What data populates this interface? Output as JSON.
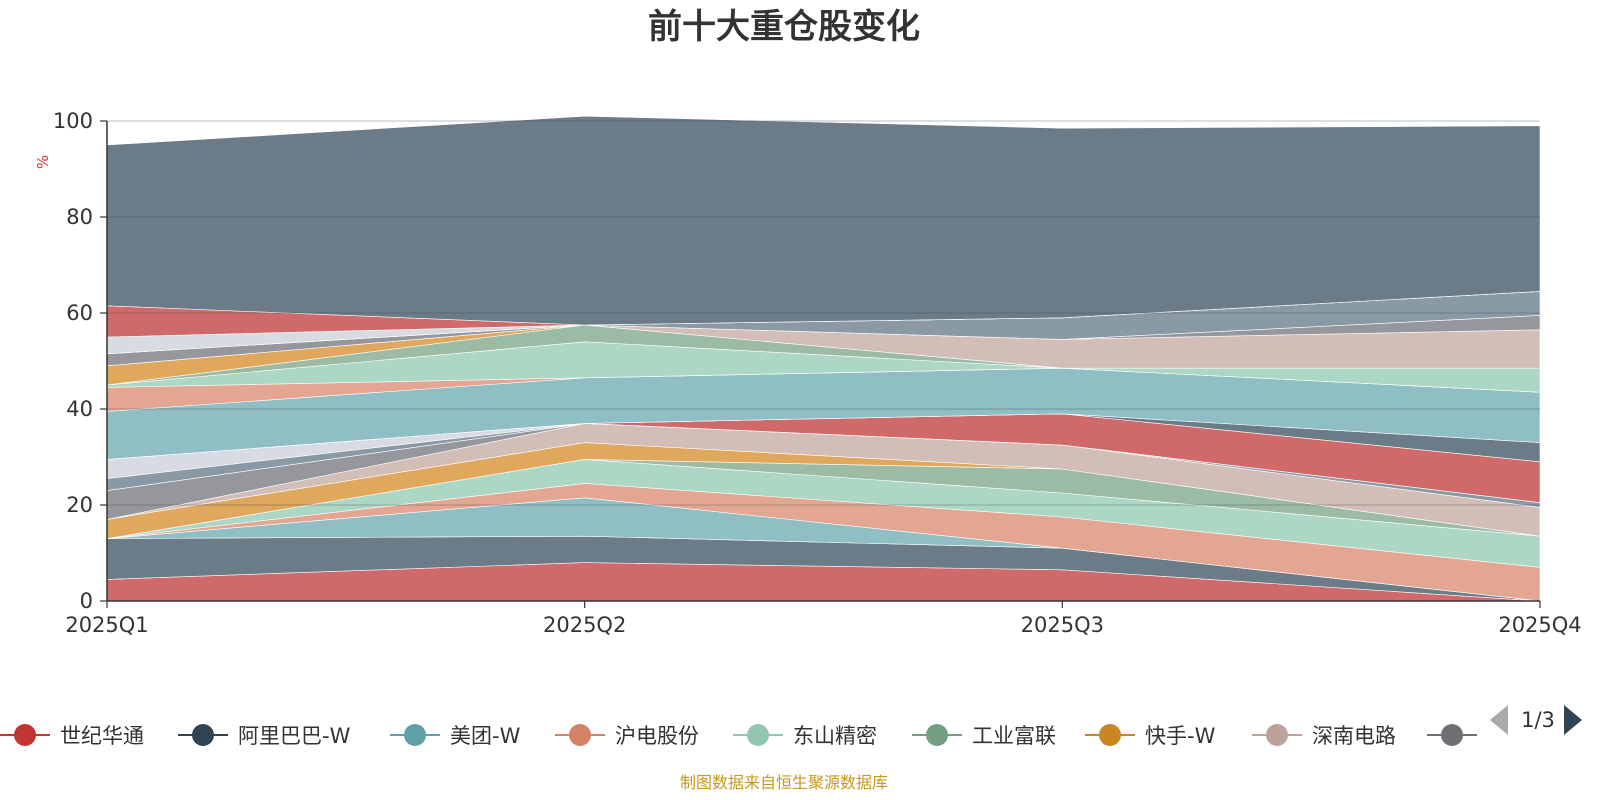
{
  "chart_data": {
    "type": "area",
    "title": "前十大重仓股变化",
    "ylabel": "%",
    "ylim": [
      0,
      100
    ],
    "yticks": [
      0,
      20,
      40,
      60,
      80,
      100
    ],
    "categories": [
      "2025Q1",
      "2025Q2",
      "2025Q3",
      "2025Q4"
    ],
    "grid": true,
    "legend_position": "bottom",
    "legend_page": "1/3",
    "source": "制图数据来自恒生聚源数据库",
    "series": [
      {
        "name": "世纪华通",
        "color": "#d06a6a",
        "values": [
          4.5,
          8.0,
          6.5,
          0.0
        ]
      },
      {
        "name": "阿里巴巴-W",
        "color": "#6b7b87",
        "values": [
          8.5,
          5.5,
          4.5,
          0.0
        ]
      },
      {
        "name": "美团-W",
        "color": "#8fbec4",
        "values": [
          0.0,
          8.0,
          0.0,
          0.0
        ]
      },
      {
        "name": "沪电股份",
        "color": "#e3a692",
        "values": [
          0.0,
          3.0,
          6.5,
          7.0
        ]
      },
      {
        "name": "东山精密",
        "color": "#add7c5",
        "values": [
          0.0,
          5.0,
          5.0,
          6.5
        ]
      },
      {
        "name": "工业富联",
        "color": "#9cbba5",
        "values": [
          0.0,
          0.0,
          5.0,
          0.0
        ]
      },
      {
        "name": "快手-W",
        "color": "#dfa85c",
        "values": [
          4.0,
          3.5,
          0.0,
          0.0
        ]
      },
      {
        "name": "深南电路",
        "color": "#d3bdb7",
        "values": [
          0.0,
          4.0,
          5.0,
          6.0
        ]
      },
      {
        "color": "#96979c",
        "values": [
          6.0,
          0.0,
          0.0,
          0.0
        ]
      },
      {
        "color": "#8a9aa5",
        "values": [
          2.5,
          0.0,
          0.0,
          1.0
        ]
      },
      {
        "color": "#d9dbe2",
        "values": [
          4.0,
          0.0,
          0.0,
          0.0
        ]
      },
      {
        "color": "#d06a6a",
        "values": [
          0.0,
          0.0,
          6.5,
          8.5
        ]
      },
      {
        "color": "#6b7b87",
        "values": [
          0.0,
          0.0,
          0.0,
          4.0
        ]
      },
      {
        "color": "#8fbec4",
        "values": [
          10.0,
          9.5,
          9.5,
          10.5
        ]
      },
      {
        "color": "#e3a692",
        "values": [
          5.0,
          0.0,
          0.0,
          0.0
        ]
      },
      {
        "color": "#add7c5",
        "values": [
          0.5,
          7.5,
          0.0,
          5.0
        ]
      },
      {
        "color": "#9cbba5",
        "values": [
          0.0,
          3.5,
          0.0,
          0.0
        ]
      },
      {
        "color": "#dfa85c",
        "values": [
          4.0,
          0.0,
          0.0,
          0.0
        ]
      },
      {
        "color": "#d3bdb7",
        "values": [
          0.0,
          0.0,
          6.0,
          8.0
        ]
      },
      {
        "color": "#96979c",
        "values": [
          2.5,
          0.0,
          0.0,
          3.0
        ]
      },
      {
        "color": "#8a9aa5",
        "values": [
          0.0,
          0.0,
          4.5,
          5.0
        ]
      },
      {
        "color": "#d9dbe2",
        "values": [
          3.5,
          0.0,
          0.0,
          0.0
        ]
      },
      {
        "color": "#d06a6a",
        "values": [
          6.5,
          0.0,
          0.0,
          0.0
        ]
      },
      {
        "color": "#6b7b87",
        "values": [
          33.5,
          43.5,
          39.5,
          34.5
        ]
      }
    ]
  }
}
